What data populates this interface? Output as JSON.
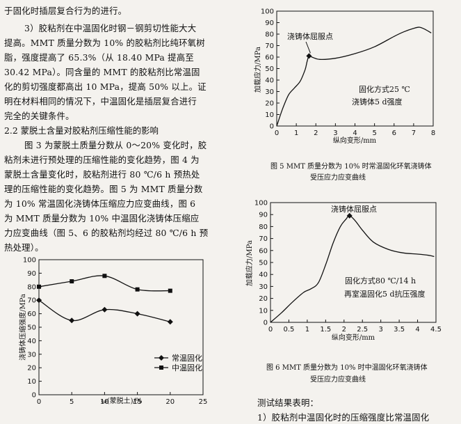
{
  "text_left": [
    "于固化时插层复合行为的进行。",
    "3）胶粘剂在中温固化时钢－钢剪切性能大大",
    "提高。MMT 质量分数为 10% 的胶粘剂比纯环氧树",
    "脂，强度提高了 65.3%（从 18.40 MPa 提高至",
    "30.42 MPa）。同含量的 MMT 的胶粘剂比常温固",
    "化的剪切强度都高出 10 MPa，提高 50% 以上。证",
    "明在材料相同的情况下，中温固化是插层复合进行",
    "完全的关键条件。"
  ],
  "section_heading": "2.2   蒙脱土含量对胶粘剂压缩性能的影响",
  "text_left2": [
    "图 3 为蒙脱土质量分数从 0～20% 变化时，胶",
    "粘剂未进行预处理的压缩性能的变化趋势，图 4 为",
    "蒙脱土含量变化时，胶粘剂进行 80 ℃/6 h 预热处",
    "理的压缩性能的变化趋势。图 5 为 MMT 质量分数",
    "为 10% 常温固化浇铸体压缩应力应变曲线，图 6",
    "为 MMT 质量分数为 10% 中温固化浇铸体压缩应",
    "力应变曲线（图 5、6 的胶粘剂均经过 80 ℃/6 h 预",
    "热处理）。"
  ],
  "text_right_bottom": [
    "测试结果表明：",
    "1）胶粘剂中温固化时的压缩强度比常温固化"
  ],
  "fig5_caption": [
    "图 5    MMT 质量分数为 10% 时常温固化环氧浇铸体",
    "受压应力应变曲线"
  ],
  "fig6_caption": [
    "图 6    MMT 质量分数为 10% 时中温固化环氧浇铸体",
    "受压应力应变曲线"
  ],
  "chart_data": [
    {
      "id": "fig4",
      "type": "line",
      "xlabel": "ω(蒙脱土)/%",
      "ylabel": "浇铸体压缩强度/MPa",
      "xlim": [
        0,
        25
      ],
      "ylim": [
        0,
        100
      ],
      "xticks": [
        0,
        5,
        10,
        15,
        20,
        25
      ],
      "yticks": [
        0,
        10,
        20,
        30,
        40,
        50,
        60,
        70,
        80,
        90,
        100
      ],
      "series": [
        {
          "name": "常温固化",
          "marker": "diamond",
          "x": [
            0,
            5,
            10,
            15,
            20
          ],
          "values": [
            70,
            55,
            63,
            60,
            54
          ]
        },
        {
          "name": "中温固化",
          "marker": "square",
          "x": [
            0,
            5,
            10,
            15,
            20
          ],
          "values": [
            80,
            84,
            88,
            78,
            77
          ]
        }
      ],
      "legend": "bottom-right"
    },
    {
      "id": "fig5",
      "type": "line",
      "xlabel": "纵向变形/mm",
      "ylabel": "加载应力/MPa",
      "xlim": [
        0,
        8
      ],
      "ylim": [
        0,
        100
      ],
      "xticks": [
        0,
        1,
        2,
        3,
        4,
        5,
        6,
        7,
        8
      ],
      "yticks": [
        0,
        10,
        20,
        30,
        40,
        50,
        60,
        70,
        80,
        90,
        100
      ],
      "annotations": [
        "浇铸体屈服点",
        "固化方式25 ℃",
        "浇铸体5 d强度"
      ],
      "yield_point": {
        "x": 1.65,
        "y": 61
      },
      "series": [
        {
          "x": [
            0,
            0.3,
            0.6,
            0.9,
            1.2,
            1.45,
            1.55,
            1.65,
            1.8,
            2.2,
            3.0,
            4.0,
            5.0,
            6.0,
            6.5,
            7.0,
            7.3,
            7.6,
            7.9
          ],
          "values": [
            0,
            15,
            27,
            33,
            39,
            49,
            56,
            61,
            60,
            58,
            59,
            63,
            69,
            78,
            82,
            85,
            86,
            84,
            81
          ]
        }
      ]
    },
    {
      "id": "fig6",
      "type": "line",
      "xlabel": "纵向变形/mm",
      "ylabel": "加载应力/MPa",
      "xlim": [
        0,
        4.5
      ],
      "ylim": [
        0,
        100
      ],
      "xticks": [
        0,
        0.5,
        1,
        1.5,
        2,
        2.5,
        3,
        3.5,
        4,
        4.5
      ],
      "xticklabels": [
        "0",
        "0.5",
        "1",
        "1.5",
        "2",
        "2.5",
        "3",
        "3.5",
        "4",
        "4.5"
      ],
      "yticks": [
        0,
        10,
        20,
        30,
        40,
        50,
        60,
        70,
        80,
        90,
        100
      ],
      "annotations": [
        "浇铸体屈服点",
        "固化方式80 ℃/14 h",
        "再室温固化5 d抗压强度"
      ],
      "yield_point": {
        "x": 2.15,
        "y": 89
      },
      "series": [
        {
          "x": [
            0,
            0.3,
            0.6,
            0.9,
            1.1,
            1.3,
            1.5,
            1.7,
            1.9,
            2.05,
            2.15,
            2.3,
            2.5,
            2.8,
            3.2,
            3.6,
            4.0,
            4.3,
            4.45
          ],
          "values": [
            0,
            8,
            17,
            25,
            28,
            33,
            48,
            66,
            80,
            86,
            89,
            85,
            77,
            67,
            61,
            58,
            57,
            56,
            55
          ]
        }
      ]
    }
  ]
}
